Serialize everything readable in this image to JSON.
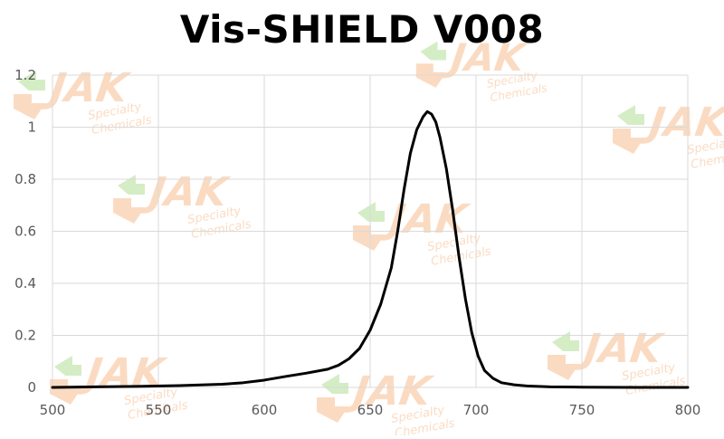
{
  "colors": {
    "line": "#000000",
    "grid": "#d9d9d9",
    "axis_text": "#595959",
    "watermark_orange": "#f4a261",
    "watermark_green": "#8fd16a"
  },
  "watermark": {
    "brand": "JAK",
    "line1": "Specialty",
    "line2": "Chemicals"
  },
  "chart_data": {
    "type": "line",
    "title": "Vis-SHIELD V008",
    "xlabel": "",
    "ylabel": "",
    "xlim": [
      500,
      800
    ],
    "ylim": [
      0,
      1.2
    ],
    "grid": true,
    "legend": "none",
    "x_ticks": [
      500,
      550,
      600,
      650,
      700,
      750,
      800
    ],
    "y_ticks": [
      0,
      0.2,
      0.4,
      0.6,
      0.8,
      1,
      1.2
    ],
    "x_tick_labels": [
      "500",
      "550",
      "600",
      "650",
      "700",
      "750",
      "800"
    ],
    "y_tick_labels": [
      "0",
      "0.2",
      "0.4",
      "0.6",
      "0.8",
      "1",
      "1.2"
    ],
    "series": [
      {
        "x": [
          500,
          520,
          540,
          560,
          580,
          590,
          600,
          610,
          620,
          630,
          635,
          640,
          645,
          650,
          655,
          660,
          663,
          666,
          669,
          672,
          675,
          677,
          679,
          681,
          683,
          686,
          689,
          692,
          695,
          698,
          701,
          704,
          708,
          712,
          718,
          725,
          735,
          750,
          775,
          800
        ],
        "y": [
          0.0,
          0.002,
          0.004,
          0.007,
          0.012,
          0.018,
          0.028,
          0.042,
          0.055,
          0.07,
          0.085,
          0.11,
          0.15,
          0.22,
          0.32,
          0.46,
          0.6,
          0.76,
          0.9,
          0.99,
          1.04,
          1.06,
          1.05,
          1.02,
          0.96,
          0.84,
          0.68,
          0.5,
          0.34,
          0.21,
          0.12,
          0.065,
          0.035,
          0.018,
          0.01,
          0.005,
          0.002,
          0.001,
          0.0,
          0.0
        ]
      }
    ]
  }
}
